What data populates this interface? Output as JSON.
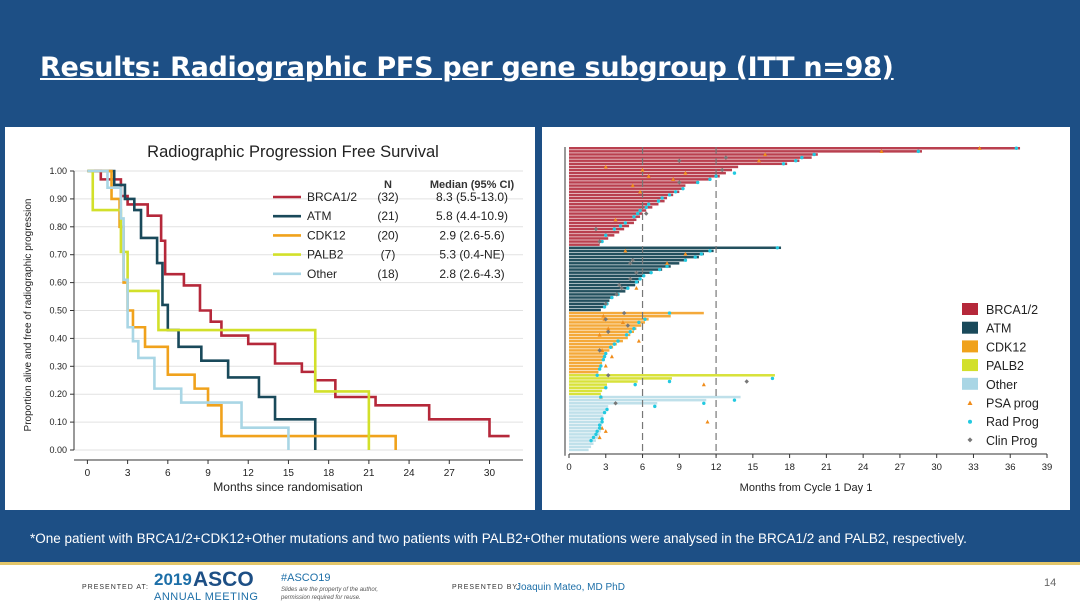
{
  "slide": {
    "title": "Results: Radiographic PFS  per gene subgroup (ITT n=98)",
    "footnote": "*One patient with BRCA1/2+CDK12+Other mutations and two patients with PALB2+Other mutations were analysed in the BRCA1/2 and PALB2, respectively."
  },
  "footer": {
    "presented_at": "PRESENTED AT:",
    "year": "2019",
    "org": "ASCO",
    "meeting": "ANNUAL MEETING",
    "hashtag": "#ASCO19",
    "note_line1": "Slides are the property of the author,",
    "note_line2": "permission required for reuse.",
    "presented_by": "PRESENTED BY:",
    "presenter": "Joaquin Mateo, MD PhD",
    "page": "14"
  },
  "colors": {
    "BRCA1/2": "#b5283a",
    "ATM": "#19495a",
    "CDK12": "#f0a21c",
    "PALB2": "#d2e02a",
    "Other": "#a9d6e5",
    "brca_swimmer": "#b9404f",
    "atm_swimmer": "#23505e",
    "cdk_swimmer": "#f4a93a",
    "palb_swimmer": "#d8e23a",
    "other_swimmer": "#bfe0ea",
    "psa": "#f08c1a",
    "rad": "#22c9e0",
    "clin": "#777777"
  },
  "chart_data": [
    {
      "type": "line",
      "title": "Radiographic Progression Free Survival",
      "xlabel": "Months since randomisation",
      "ylabel": "Proportion alive and free of radiographic progression",
      "xlim": [
        -1,
        32.5
      ],
      "ylim": [
        0,
        1
      ],
      "xticks": [
        "0",
        "3",
        "6",
        "9",
        "12",
        "15",
        "18",
        "21",
        "24",
        "27",
        "30"
      ],
      "yticks": [
        "0.00",
        "0.10",
        "0.20",
        "0.30",
        "0.40",
        "0.50",
        "0.60",
        "0.70",
        "0.80",
        "0.90",
        "1.00"
      ],
      "legend_headers": {
        "n": "N",
        "median": "Median (95% CI)"
      },
      "series": [
        {
          "name": "BRCA1/2",
          "n": "(32)",
          "median": "8.3 (5.5-13.0)",
          "x": [
            0,
            1,
            2.5,
            3,
            4.5,
            5.5,
            5.8,
            7.2,
            8.4,
            9.2,
            10,
            12,
            14,
            16,
            17,
            18.5,
            21.5,
            25.5,
            30,
            31.5
          ],
          "y": [
            1,
            0.97,
            0.91,
            0.88,
            0.84,
            0.75,
            0.63,
            0.59,
            0.5,
            0.46,
            0.41,
            0.38,
            0.31,
            0.28,
            0.25,
            0.19,
            0.16,
            0.11,
            0.05,
            0.05
          ]
        },
        {
          "name": "ATM",
          "n": "(21)",
          "median": "5.8 (4.4-10.9)",
          "x": [
            0,
            2,
            2.8,
            3.5,
            4,
            5.2,
            5.6,
            6,
            6.8,
            8.5,
            10.5,
            12.8,
            14,
            17,
            17
          ],
          "y": [
            1,
            0.95,
            0.9,
            0.86,
            0.76,
            0.67,
            0.52,
            0.43,
            0.37,
            0.32,
            0.26,
            0.19,
            0.11,
            0.06,
            0
          ],
          "end_drop": true
        },
        {
          "name": "CDK12",
          "n": "(20)",
          "median": "2.9 (2.6-5.6)",
          "x": [
            0,
            1.8,
            2.4,
            2.7,
            3,
            3.4,
            4.3,
            6,
            8,
            9,
            10,
            23,
            23
          ],
          "y": [
            1,
            0.9,
            0.8,
            0.6,
            0.5,
            0.44,
            0.37,
            0.27,
            0.22,
            0.16,
            0.05,
            0.05,
            0
          ],
          "end_drop": true
        },
        {
          "name": "PALB2",
          "n": "(7)",
          "median": "5.3 (0.4-NE)",
          "x": [
            0,
            0.4,
            2.5,
            3,
            5.3,
            17,
            21,
            21
          ],
          "y": [
            1,
            0.86,
            0.71,
            0.57,
            0.43,
            0.21,
            0.21,
            0
          ],
          "end_drop": true
        },
        {
          "name": "Other",
          "n": "(18)",
          "median": "2.8 (2.6-4.3)",
          "x": [
            0,
            1.5,
            2.5,
            2.7,
            3,
            3.4,
            3.8,
            5,
            7,
            11.5,
            15,
            15
          ],
          "y": [
            1,
            0.94,
            0.83,
            0.61,
            0.44,
            0.39,
            0.33,
            0.22,
            0.17,
            0.08,
            0.08,
            0
          ],
          "end_drop": true
        }
      ]
    },
    {
      "type": "bar",
      "subtype": "swimmer",
      "xlabel": "Months from Cycle 1 Day 1",
      "xlim": [
        0,
        39
      ],
      "xticks": [
        "0",
        "3",
        "6",
        "9",
        "12",
        "15",
        "18",
        "21",
        "24",
        "27",
        "30",
        "33",
        "36",
        "39"
      ],
      "reference_lines_x": [
        6,
        12
      ],
      "legend": [
        "BRCA1/2",
        "ATM",
        "CDK12",
        "PALB2",
        "Other",
        "PSA prog",
        "Rad Prog",
        "Clin Prog"
      ],
      "groups": [
        {
          "name": "BRCA1/2",
          "durations": [
            36.8,
            28.8,
            20.3,
            19.8,
            18.8,
            17.8,
            13.8,
            13.3,
            12.8,
            12.3,
            11.5,
            10.5,
            9.5,
            9.3,
            9.0,
            8.5,
            8.0,
            7.8,
            7.3,
            6.8,
            6.3,
            6.0,
            5.8,
            5.5,
            5.3,
            4.9,
            4.5,
            4.1,
            3.7,
            3.2,
            2.8,
            2.5
          ]
        },
        {
          "name": "ATM",
          "durations": [
            17.3,
            11.8,
            11.0,
            10.6,
            9.6,
            9.0,
            8.3,
            7.6,
            6.8,
            6.2,
            5.9,
            5.7,
            5.4,
            4.9,
            4.6,
            4.1,
            3.6,
            3.3,
            3.1,
            2.9,
            2.6
          ]
        },
        {
          "name": "CDK12",
          "durations": [
            11.0,
            8.3,
            6.5,
            6.2,
            5.9,
            5.5,
            5.3,
            5.0,
            4.8,
            4.4,
            3.9,
            3.6,
            3.3,
            3.1,
            2.9,
            2.8,
            2.7,
            2.6,
            2.5,
            2.4
          ]
        },
        {
          "name": "PALB2",
          "durations": [
            16.8,
            8.4,
            5.6,
            3.1,
            2.9,
            2.7,
            2.6
          ]
        },
        {
          "name": "Other",
          "durations": [
            14.0,
            11.2,
            7.2,
            3.2,
            3.0,
            2.9,
            2.8,
            2.8,
            2.7,
            2.7,
            2.6,
            2.6,
            2.5,
            2.4,
            2.2,
            2.0,
            1.8,
            1.6
          ]
        }
      ],
      "events": {
        "psa": [
          [
            0,
            33.5
          ],
          [
            1,
            25.5
          ],
          [
            2,
            16.0
          ],
          [
            4,
            15.5
          ],
          [
            6,
            3.0
          ],
          [
            7,
            6.0
          ],
          [
            8,
            9.5
          ],
          [
            9,
            6.5
          ],
          [
            10,
            8.5
          ],
          [
            12,
            5.2
          ],
          [
            14,
            5.8
          ],
          [
            23,
            3.8
          ],
          [
            33,
            4.6
          ],
          [
            34,
            9.5
          ],
          [
            37,
            8.0
          ],
          [
            45,
            5.5
          ],
          [
            54,
            2.8
          ],
          [
            55,
            2.9
          ],
          [
            56,
            4.4
          ],
          [
            58,
            3.2
          ],
          [
            60,
            2.5
          ],
          [
            62,
            5.7
          ],
          [
            65,
            2.7
          ],
          [
            67,
            3.5
          ],
          [
            70,
            3.0
          ],
          [
            76,
            11.0
          ],
          [
            80,
            2.6
          ],
          [
            88,
            11.3
          ],
          [
            90,
            2.7
          ],
          [
            91,
            3.0
          ],
          [
            93,
            2.5
          ]
        ],
        "rad": [
          [
            0,
            36.5
          ],
          [
            1,
            28.5
          ],
          [
            2,
            20.0
          ],
          [
            3,
            19.0
          ],
          [
            4,
            18.5
          ],
          [
            5,
            17.5
          ],
          [
            8,
            13.5
          ],
          [
            9,
            12.0
          ],
          [
            10,
            11.5
          ],
          [
            11,
            10.5
          ],
          [
            13,
            9.3
          ],
          [
            14,
            8.7
          ],
          [
            15,
            8.2
          ],
          [
            16,
            7.6
          ],
          [
            17,
            7.3
          ],
          [
            18,
            6.5
          ],
          [
            19,
            6.3
          ],
          [
            20,
            5.8
          ],
          [
            21,
            5.6
          ],
          [
            22,
            5.3
          ],
          [
            24,
            4.6
          ],
          [
            25,
            4.2
          ],
          [
            26,
            3.7
          ],
          [
            28,
            3.0
          ],
          [
            30,
            2.7
          ],
          [
            32,
            17.0
          ],
          [
            33,
            11.5
          ],
          [
            34,
            10.8
          ],
          [
            35,
            10.3
          ],
          [
            36,
            9.5
          ],
          [
            38,
            8.0
          ],
          [
            39,
            7.4
          ],
          [
            40,
            6.7
          ],
          [
            41,
            6.1
          ],
          [
            42,
            5.8
          ],
          [
            43,
            5.5
          ],
          [
            45,
            4.8
          ],
          [
            47,
            4.0
          ],
          [
            48,
            3.5
          ],
          [
            50,
            3.1
          ],
          [
            51,
            2.9
          ],
          [
            53,
            8.2
          ],
          [
            55,
            6.2
          ],
          [
            56,
            5.7
          ],
          [
            58,
            5.3
          ],
          [
            59,
            5.0
          ],
          [
            60,
            4.7
          ],
          [
            62,
            4.0
          ],
          [
            63,
            3.7
          ],
          [
            64,
            3.4
          ],
          [
            66,
            3.0
          ],
          [
            67,
            2.9
          ],
          [
            68,
            2.8
          ],
          [
            70,
            2.6
          ],
          [
            71,
            2.5
          ],
          [
            73,
            2.3
          ],
          [
            74,
            16.6
          ],
          [
            75,
            8.2
          ],
          [
            76,
            5.4
          ],
          [
            77,
            3.0
          ],
          [
            80,
            2.6
          ],
          [
            81,
            13.5
          ],
          [
            82,
            11.0
          ],
          [
            83,
            7.0
          ],
          [
            84,
            3.1
          ],
          [
            85,
            2.9
          ],
          [
            87,
            2.7
          ],
          [
            88,
            2.7
          ],
          [
            89,
            2.5
          ],
          [
            90,
            2.5
          ],
          [
            91,
            2.3
          ],
          [
            92,
            2.2
          ],
          [
            93,
            2.0
          ],
          [
            94,
            1.8
          ]
        ],
        "clin": [
          [
            3,
            12.8
          ],
          [
            4,
            9.0
          ],
          [
            7,
            12.5
          ],
          [
            11,
            9.0
          ],
          [
            21,
            6.3
          ],
          [
            26,
            2.2
          ],
          [
            30,
            2.5
          ],
          [
            36,
            5.2
          ],
          [
            37,
            5.0
          ],
          [
            40,
            5.5
          ],
          [
            42,
            5.0
          ],
          [
            44,
            4.1
          ],
          [
            45,
            4.3
          ],
          [
            47,
            3.9
          ],
          [
            50,
            3.0
          ],
          [
            53,
            4.5
          ],
          [
            55,
            3.0
          ],
          [
            57,
            4.8
          ],
          [
            59,
            3.2
          ],
          [
            65,
            2.5
          ],
          [
            73,
            3.2
          ],
          [
            75,
            14.5
          ],
          [
            82,
            3.8
          ]
        ]
      }
    }
  ]
}
